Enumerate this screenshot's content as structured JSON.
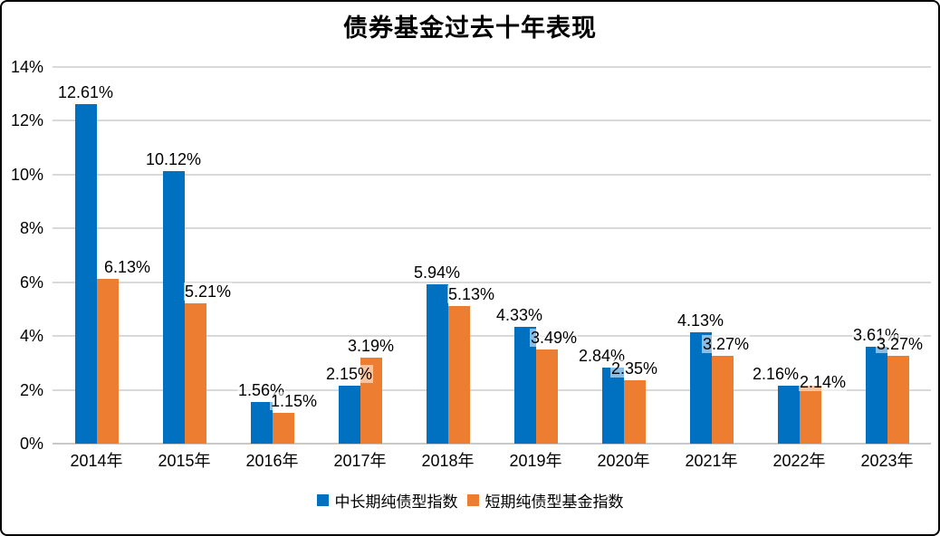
{
  "chart_data": {
    "type": "bar",
    "title": "债券基金过去十年表现",
    "categories": [
      "2014年",
      "2015年",
      "2016年",
      "2017年",
      "2018年",
      "2019年",
      "2020年",
      "2021年",
      "2022年",
      "2023年"
    ],
    "series": [
      {
        "name": "中长期纯债型指数",
        "color": "#0070C0",
        "values": [
          12.61,
          10.12,
          1.56,
          2.15,
          5.94,
          4.33,
          2.84,
          4.13,
          2.16,
          3.61
        ],
        "labels": [
          "12.61%",
          "10.12%",
          "1.56%",
          "2.15%",
          "5.94%",
          "4.33%",
          "2.84%",
          "4.13%",
          "2.16%",
          "3.61%"
        ],
        "label_dx": [
          0,
          0,
          0,
          0,
          0,
          -6,
          -12,
          0,
          -14,
          0
        ],
        "label_dy": [
          0,
          0,
          0,
          0,
          0,
          0,
          0,
          0,
          0,
          0
        ]
      },
      {
        "name": "短期纯债型基金指数",
        "color": "#ED7D31",
        "values": [
          6.13,
          5.21,
          1.15,
          3.19,
          5.13,
          3.49,
          2.35,
          3.27,
          2.14,
          3.27
        ],
        "labels": [
          "6.13%",
          "5.21%",
          "1.15%",
          "3.19%",
          "5.13%",
          "3.49%",
          "2.35%",
          "3.27%",
          "2.14%",
          "3.27%"
        ],
        "label_dx": [
          22,
          14,
          12,
          0,
          14,
          8,
          0,
          4,
          14,
          2
        ],
        "label_dy": [
          0,
          0,
          0,
          0,
          0,
          0,
          0,
          0,
          9,
          0
        ]
      }
    ],
    "y_ticks": [
      0,
      2,
      4,
      6,
      8,
      10,
      12,
      14
    ],
    "y_tick_suffix": "%",
    "y_max": 14,
    "xlabel": "",
    "ylabel": "",
    "grid": true,
    "legend_position": "bottom",
    "colors": {
      "grid": "#D9D9D9",
      "axis_line": "#C9C9C9",
      "text": "#000000",
      "background": "#FFFFFF",
      "border": "#000000"
    }
  }
}
